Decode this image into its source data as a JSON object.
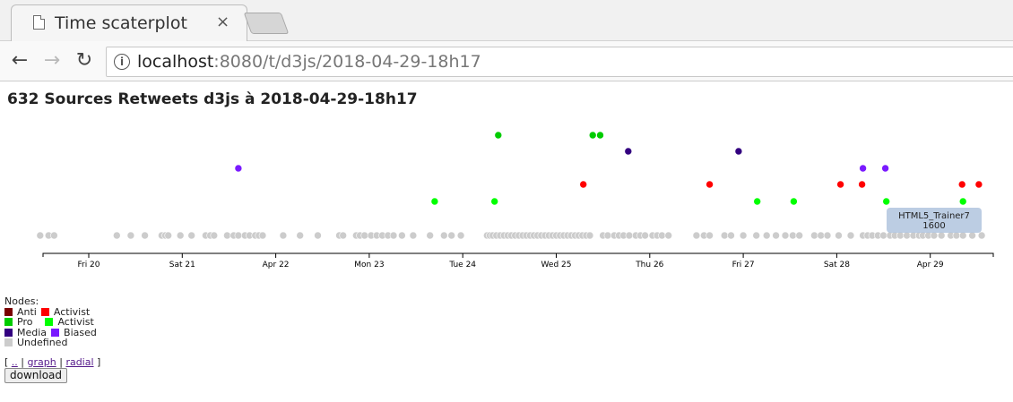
{
  "browser": {
    "tab_title": "Time scaterplot",
    "tab_close": "×",
    "url_host": "localhost",
    "url_rest": ":8080/t/d3js/2018-04-29-18h17",
    "back_icon": "arrow-left-icon",
    "forward_icon": "arrow-right-icon",
    "reload_icon": "reload-icon",
    "info_icon": "info-icon"
  },
  "page": {
    "title": "632 Sources Retweets d3js à 2018-04-29-18h17"
  },
  "colors": {
    "anti": "#7a0000",
    "anti_activist": "#ff0000",
    "pro": "#00cc00",
    "pro_activist": "#00ff00",
    "media": "#330080",
    "media_biased": "#7a1aff",
    "undefined": "#cccccc"
  },
  "chart_data": {
    "type": "scatter",
    "x_axis": "time",
    "x_range_days": [
      19.5,
      29.6
    ],
    "tick_labels": [
      "Fri 20",
      "Sat 21",
      "Apr 22",
      "Mon 23",
      "Tue 24",
      "Wed 25",
      "Thu 26",
      "Fri 27",
      "Sat 28",
      "Apr 29"
    ],
    "tick_days": [
      20,
      21,
      22,
      23,
      24,
      25,
      26,
      27,
      28,
      29
    ],
    "y_levels": [
      "undefined",
      "pro_activist",
      "anti_activist",
      "media_biased",
      "media",
      "pro"
    ],
    "points": [
      {
        "day": 21.6,
        "cat": "media_biased"
      },
      {
        "day": 23.7,
        "cat": "pro_activist"
      },
      {
        "day": 24.34,
        "cat": "pro_activist"
      },
      {
        "day": 24.38,
        "cat": "pro"
      },
      {
        "day": 25.29,
        "cat": "anti_activist"
      },
      {
        "day": 25.39,
        "cat": "pro"
      },
      {
        "day": 25.47,
        "cat": "pro"
      },
      {
        "day": 25.77,
        "cat": "media"
      },
      {
        "day": 26.64,
        "cat": "anti_activist"
      },
      {
        "day": 26.95,
        "cat": "media"
      },
      {
        "day": 27.15,
        "cat": "pro_activist"
      },
      {
        "day": 27.54,
        "cat": "pro_activist"
      },
      {
        "day": 28.04,
        "cat": "anti_activist"
      },
      {
        "day": 28.27,
        "cat": "anti_activist"
      },
      {
        "day": 28.28,
        "cat": "media_biased"
      },
      {
        "day": 28.52,
        "cat": "media_biased"
      },
      {
        "day": 28.53,
        "cat": "pro_activist"
      },
      {
        "day": 29.34,
        "cat": "anti_activist"
      },
      {
        "day": 29.35,
        "cat": "pro_activist"
      },
      {
        "day": 29.52,
        "cat": "anti_activist"
      }
    ],
    "undefined_days": [
      19.48,
      19.57,
      19.63,
      20.3,
      20.45,
      20.6,
      20.78,
      20.82,
      20.85,
      20.98,
      21.1,
      21.25,
      21.3,
      21.34,
      21.48,
      21.55,
      21.6,
      21.67,
      21.72,
      21.78,
      21.82,
      21.86,
      22.08,
      22.26,
      22.45,
      22.68,
      22.72,
      22.86,
      22.9,
      22.95,
      23.02,
      23.08,
      23.14,
      23.2,
      23.26,
      23.35,
      23.47,
      23.65,
      23.8,
      23.88,
      23.98,
      24.26,
      24.29,
      24.32,
      24.36,
      24.4,
      24.44,
      24.48,
      24.52,
      24.56,
      24.6,
      24.64,
      24.68,
      24.72,
      24.76,
      24.8,
      24.84,
      24.88,
      24.92,
      24.96,
      25.0,
      25.04,
      25.08,
      25.12,
      25.16,
      25.2,
      25.24,
      25.28,
      25.32,
      25.36,
      25.5,
      25.55,
      25.62,
      25.67,
      25.72,
      25.78,
      25.85,
      25.9,
      25.95,
      26.03,
      26.08,
      26.13,
      26.2,
      26.5,
      26.58,
      26.64,
      26.8,
      26.87,
      27.0,
      27.14,
      27.25,
      27.35,
      27.45,
      27.53,
      27.6,
      27.76,
      27.83,
      27.9,
      28.02,
      28.15,
      28.28,
      28.33,
      28.38,
      28.44,
      28.5,
      28.57,
      28.62,
      28.68,
      28.75,
      28.82,
      28.88,
      28.92,
      28.98,
      29.04,
      29.12,
      29.22,
      29.28,
      29.35,
      29.45,
      29.55
    ],
    "tooltip": {
      "name": "HTML5_Trainer7",
      "value": "1600"
    }
  },
  "legend": {
    "heading": "Nodes:",
    "rows": [
      {
        "a": "Anti",
        "b": "Activist",
        "ca": "#7a0000",
        "cb": "#ff0000"
      },
      {
        "a": "Pro",
        "b": "Activist",
        "ca": "#00cc00",
        "cb": "#00ff00"
      },
      {
        "a": "Media",
        "b": "Biased",
        "ca": "#330080",
        "cb": "#7a1aff"
      }
    ],
    "undefined_label": "Undefined",
    "undefined_color": "#cccccc"
  },
  "links": {
    "open": "[",
    "up": "..",
    "sep1": "|",
    "graph": "graph",
    "sep2": "|",
    "radial": "radial",
    "close": "]",
    "download": "download"
  }
}
